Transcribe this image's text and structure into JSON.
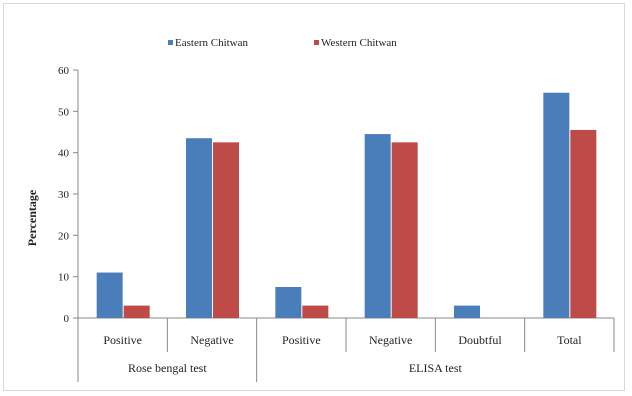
{
  "chart_data": {
    "type": "bar",
    "title": "",
    "xlabel": "",
    "ylabel": "Percentage",
    "ylim": [
      0,
      60
    ],
    "yticks": [
      0,
      10,
      20,
      30,
      40,
      50,
      60
    ],
    "grid": false,
    "legend_position": "top",
    "categories": [
      "Positive",
      "Negative",
      "Positive",
      "Negative",
      "Doubtful",
      "Total"
    ],
    "groups": [
      {
        "label": "Rose bengal test",
        "span": [
          0,
          1
        ]
      },
      {
        "label": "ELISA test",
        "span": [
          2,
          5
        ]
      }
    ],
    "series": [
      {
        "name": "Eastern Chitwan",
        "color": "#4a7ebb",
        "values": [
          11,
          43.5,
          7.5,
          44.5,
          3,
          54.5
        ]
      },
      {
        "name": "Western Chitwan",
        "color": "#be4b48",
        "values": [
          3,
          42.5,
          3,
          42.5,
          0,
          45.5
        ]
      }
    ]
  }
}
